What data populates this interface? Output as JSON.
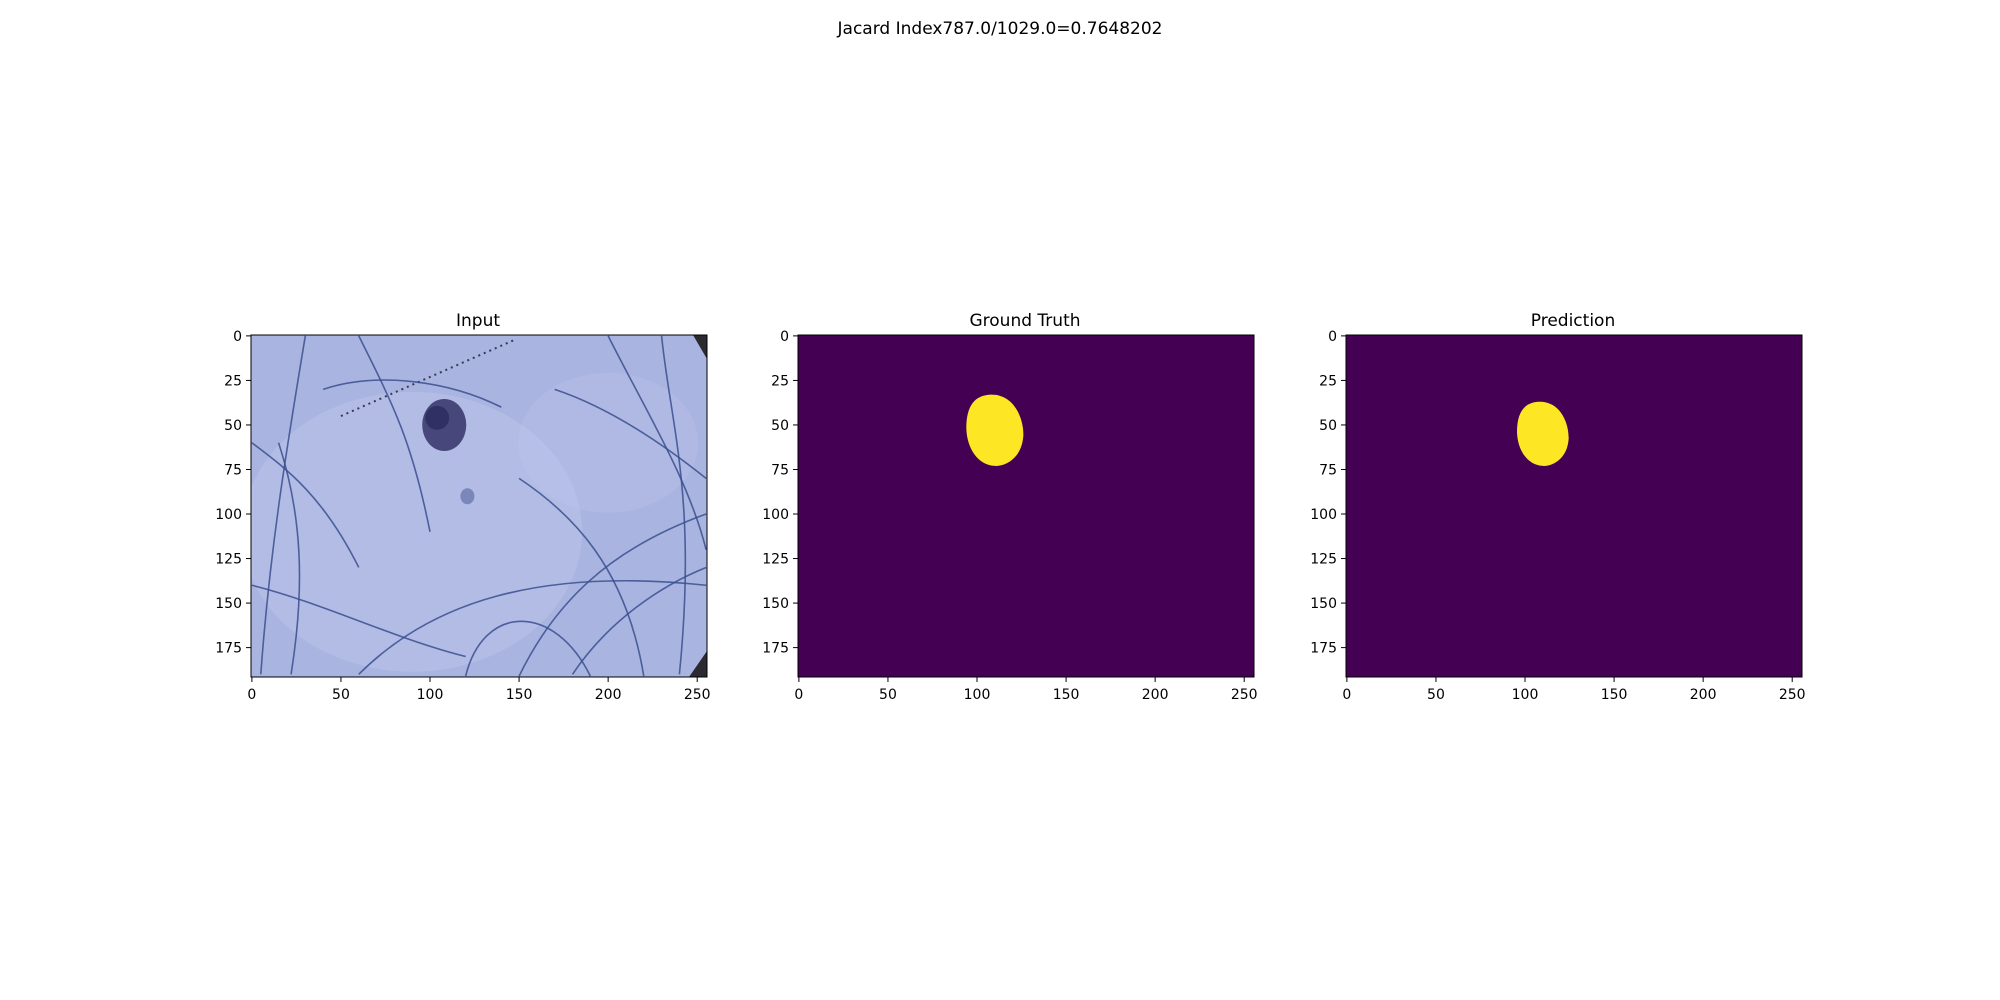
{
  "figure": {
    "suptitle": "Jacard Index787.0/1029.0=0.7648202"
  },
  "colors": {
    "mask_background": "#440154",
    "mask_foreground": "#fde725",
    "input_skin": "#a9b4e0",
    "input_skin_light": "#bcc6ea",
    "hair": "#3a4f8f",
    "lesion": "#3c3a70"
  },
  "chart_data": [
    {
      "type": "heatmap",
      "title": "Input",
      "xlabel": "",
      "ylabel": "",
      "xlim": [
        -0.5,
        255.5
      ],
      "ylim": [
        191.5,
        -0.5
      ],
      "xticks": [
        0,
        50,
        100,
        150,
        200,
        250
      ],
      "yticks": [
        0,
        25,
        50,
        75,
        100,
        125,
        150,
        175
      ],
      "grid": false,
      "content": "dermoscopy image: light blue skin with dark lesion centred near x=108, y=50 and overlaid hairs"
    },
    {
      "type": "heatmap",
      "title": "Ground Truth",
      "xlabel": "",
      "ylabel": "",
      "xlim": [
        -0.5,
        255.5
      ],
      "ylim": [
        191.5,
        -0.5
      ],
      "xticks": [
        0,
        50,
        100,
        150,
        200,
        250
      ],
      "yticks": [
        0,
        25,
        50,
        75,
        100,
        125,
        150,
        175
      ],
      "grid": false,
      "values": [
        0,
        1
      ],
      "mask_region": {
        "x_range": [
          94,
          126
        ],
        "y_range": [
          33,
          73
        ],
        "center": [
          110,
          53
        ]
      }
    },
    {
      "type": "heatmap",
      "title": "Prediction",
      "xlabel": "",
      "ylabel": "",
      "xlim": [
        -0.5,
        255.5
      ],
      "ylim": [
        191.5,
        -0.5
      ],
      "xticks": [
        0,
        50,
        100,
        150,
        200,
        250
      ],
      "yticks": [
        0,
        25,
        50,
        75,
        100,
        125,
        150,
        175
      ],
      "grid": false,
      "values": [
        0,
        1
      ],
      "mask_region": {
        "x_range": [
          96,
          125
        ],
        "y_range": [
          37,
          73
        ],
        "center": [
          110,
          55
        ]
      }
    }
  ]
}
